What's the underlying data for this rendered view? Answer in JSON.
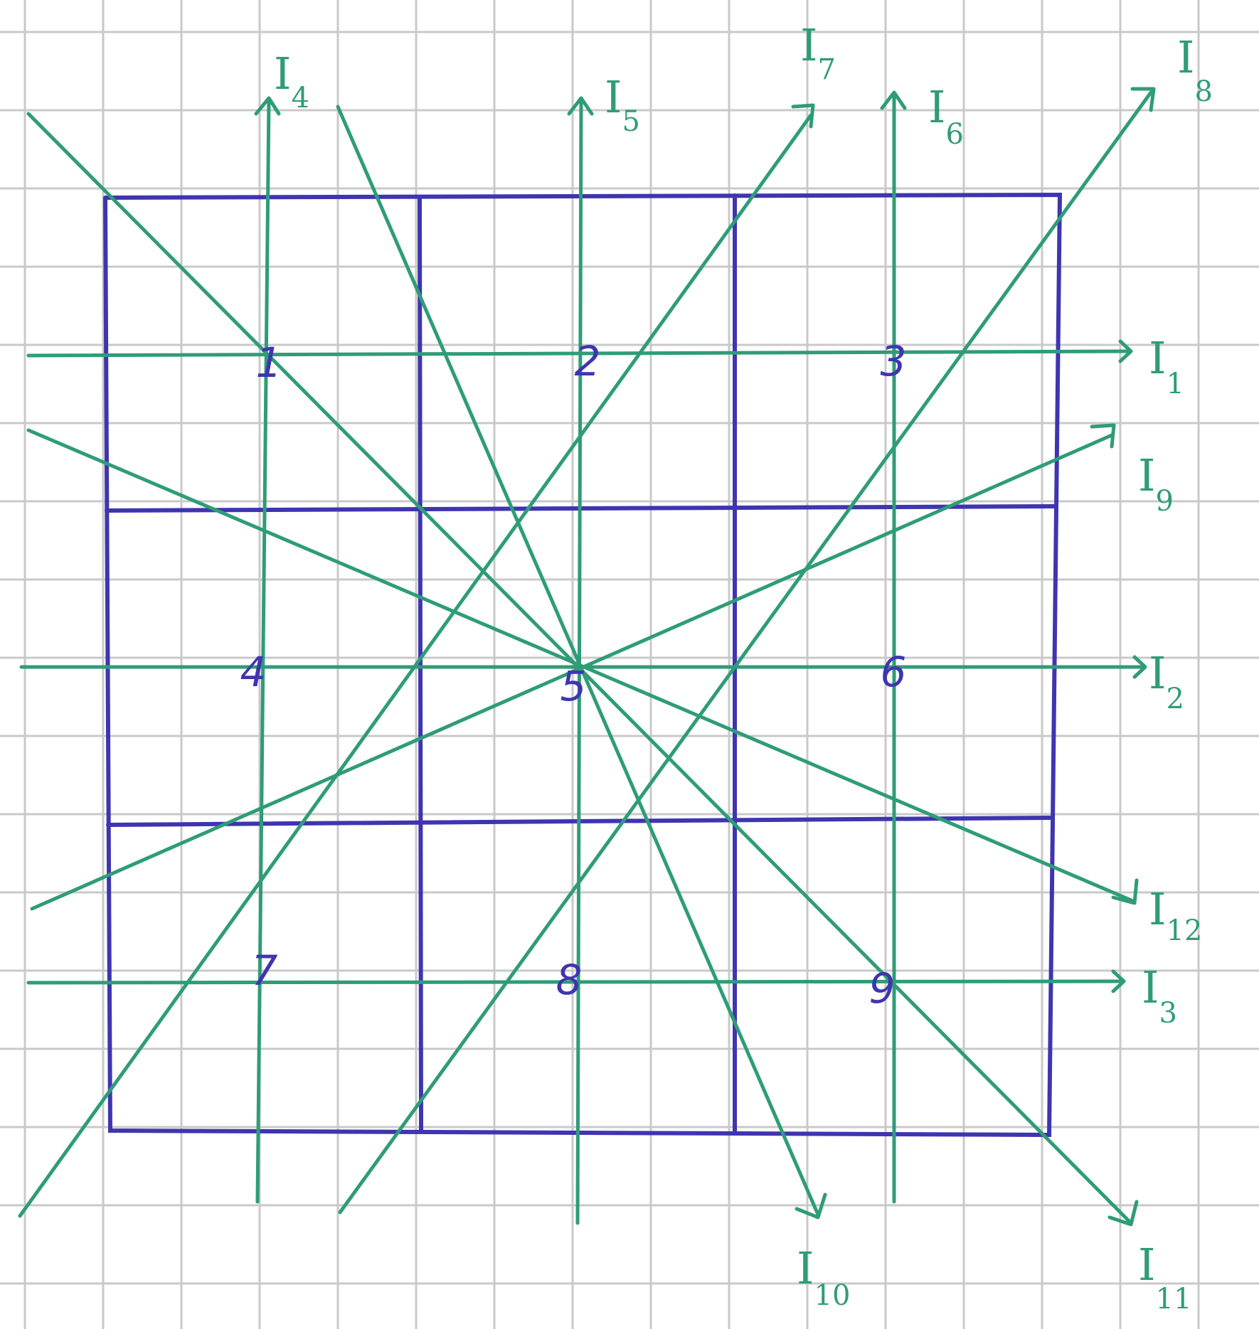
{
  "colors": {
    "paper": "#ffffff",
    "paper_grid": "#c9c9c9",
    "square_grid": "#3f35b0",
    "rays": "#2f9c78"
  },
  "cell_numbers": [
    "1",
    "2",
    "3",
    "4",
    "5",
    "6",
    "7",
    "8",
    "9"
  ],
  "rays": [
    {
      "id": "I1",
      "letter": "I",
      "sub": "1"
    },
    {
      "id": "I2",
      "letter": "I",
      "sub": "2"
    },
    {
      "id": "I3",
      "letter": "I",
      "sub": "3"
    },
    {
      "id": "I4",
      "letter": "I",
      "sub": "4"
    },
    {
      "id": "I5",
      "letter": "I",
      "sub": "5"
    },
    {
      "id": "I6",
      "letter": "I",
      "sub": "6"
    },
    {
      "id": "I7",
      "letter": "I",
      "sub": "7"
    },
    {
      "id": "I8",
      "letter": "I",
      "sub": "8"
    },
    {
      "id": "I9",
      "letter": "I",
      "sub": "9"
    },
    {
      "id": "I10",
      "letter": "I",
      "sub": "10"
    },
    {
      "id": "I11",
      "letter": "I",
      "sub": "11"
    },
    {
      "id": "I12",
      "letter": "I",
      "sub": "12"
    }
  ]
}
